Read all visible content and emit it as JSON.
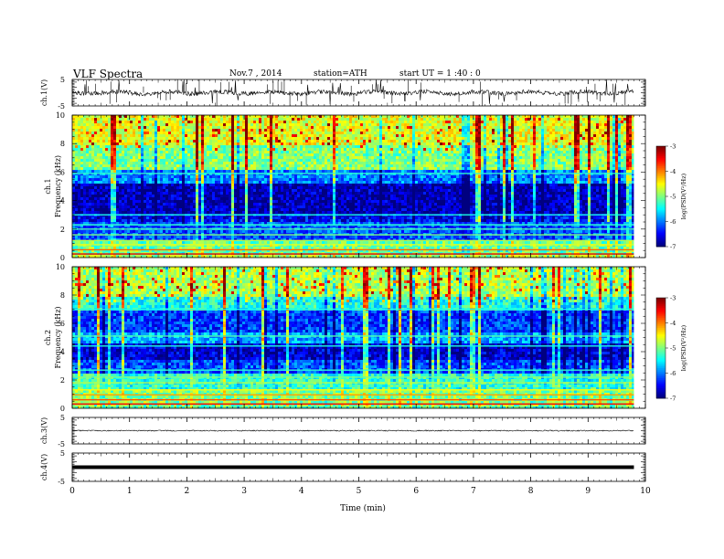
{
  "header": {
    "title": "VLF  Spectra",
    "date": "Nov.7  , 2014",
    "station": "station=ATH",
    "start": "start  UT  =   1  :40 : 0"
  },
  "chart_data": [
    {
      "type": "line",
      "name": "ch1-waveform",
      "ylabel": "ch.1(V)",
      "ylim": [
        -5,
        5
      ],
      "y_ticks": [
        "5",
        "-5"
      ],
      "baseline": 0,
      "x_end": 9.8
    },
    {
      "type": "heatmap",
      "name": "ch1-spectrogram",
      "ylabel": [
        "ch.1",
        "Frequency  (kHz)"
      ],
      "ylim": [
        0,
        10
      ],
      "y_ticks": [
        "0",
        "2",
        "4",
        "6",
        "8",
        "10"
      ],
      "x_end": 9.8,
      "colorbar": {
        "label": "log(PSD(V²/Hz)",
        "range": [
          -7,
          -3
        ],
        "ticks": [
          "-3",
          "-4",
          "-5",
          "-6",
          "-7"
        ]
      }
    },
    {
      "type": "heatmap",
      "name": "ch2-spectrogram",
      "ylabel": [
        "ch.2",
        "Frequency  (kHz)"
      ],
      "ylim": [
        0,
        10
      ],
      "y_ticks": [
        "0",
        "2",
        "4",
        "6",
        "8",
        "10"
      ],
      "x_end": 9.8,
      "colorbar": {
        "label": "log(PSD(V²/Hz)",
        "range": [
          -7,
          -3
        ],
        "ticks": [
          "-3",
          "-4",
          "-5",
          "-6",
          "-7"
        ]
      }
    },
    {
      "type": "line",
      "name": "ch3-waveform",
      "ylabel": "ch.3(V)",
      "ylim": [
        -5,
        5
      ],
      "y_ticks": [
        "5",
        "-5"
      ],
      "baseline": 0,
      "x_end": 9.8
    },
    {
      "type": "line",
      "name": "ch4-waveform",
      "ylabel": "ch.4(V)",
      "ylim": [
        -5,
        5
      ],
      "y_ticks": [
        "5",
        "-5"
      ],
      "baseline": 0,
      "x_end": 9.8
    }
  ],
  "x_axis": {
    "label": "Time  (min)",
    "range": [
      0,
      10
    ],
    "ticks": [
      "0",
      "1",
      "2",
      "3",
      "4",
      "5",
      "6",
      "7",
      "8",
      "9",
      "10"
    ]
  }
}
